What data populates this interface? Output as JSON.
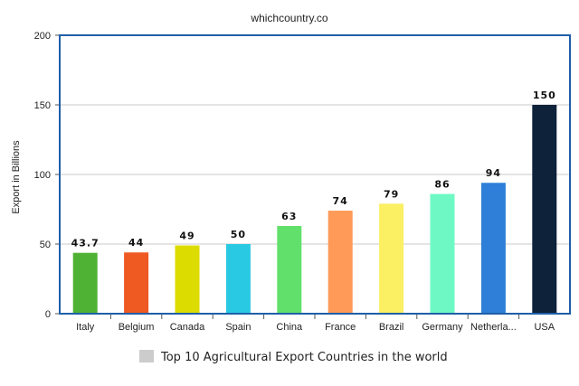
{
  "header": {
    "site": "whichcountry.co"
  },
  "chart_data": {
    "type": "bar",
    "categories": [
      "Italy",
      "Belgium",
      "Canada",
      "Spain",
      "China",
      "France",
      "Brazil",
      "Germany",
      "Netherla...",
      "USA"
    ],
    "series": [
      {
        "name": "Top 10 Agricultural Export Countries in the world",
        "values": [
          43.7,
          44,
          49,
          50,
          63,
          74,
          79,
          86,
          94,
          150
        ],
        "labels": [
          "43.7",
          "44",
          "49",
          "50",
          "63",
          "74",
          "79",
          "86",
          "94",
          "150"
        ],
        "colors": [
          "#4fb234",
          "#ee5a22",
          "#dcdc00",
          "#29c9e3",
          "#62e06c",
          "#ff9a59",
          "#fbef63",
          "#6ef9c4",
          "#2f7fd8",
          "#0e223a"
        ]
      }
    ],
    "title": "",
    "xlabel": "",
    "ylabel": "Export in Billions",
    "ylim": [
      0,
      200
    ],
    "yticks": [
      0,
      50,
      100,
      150,
      200
    ],
    "grid": true,
    "legend_position": "bottom-center",
    "legend_color": "#cccccc",
    "frame_color": "#1f5fa8",
    "grid_color": "#c8c8c8"
  }
}
